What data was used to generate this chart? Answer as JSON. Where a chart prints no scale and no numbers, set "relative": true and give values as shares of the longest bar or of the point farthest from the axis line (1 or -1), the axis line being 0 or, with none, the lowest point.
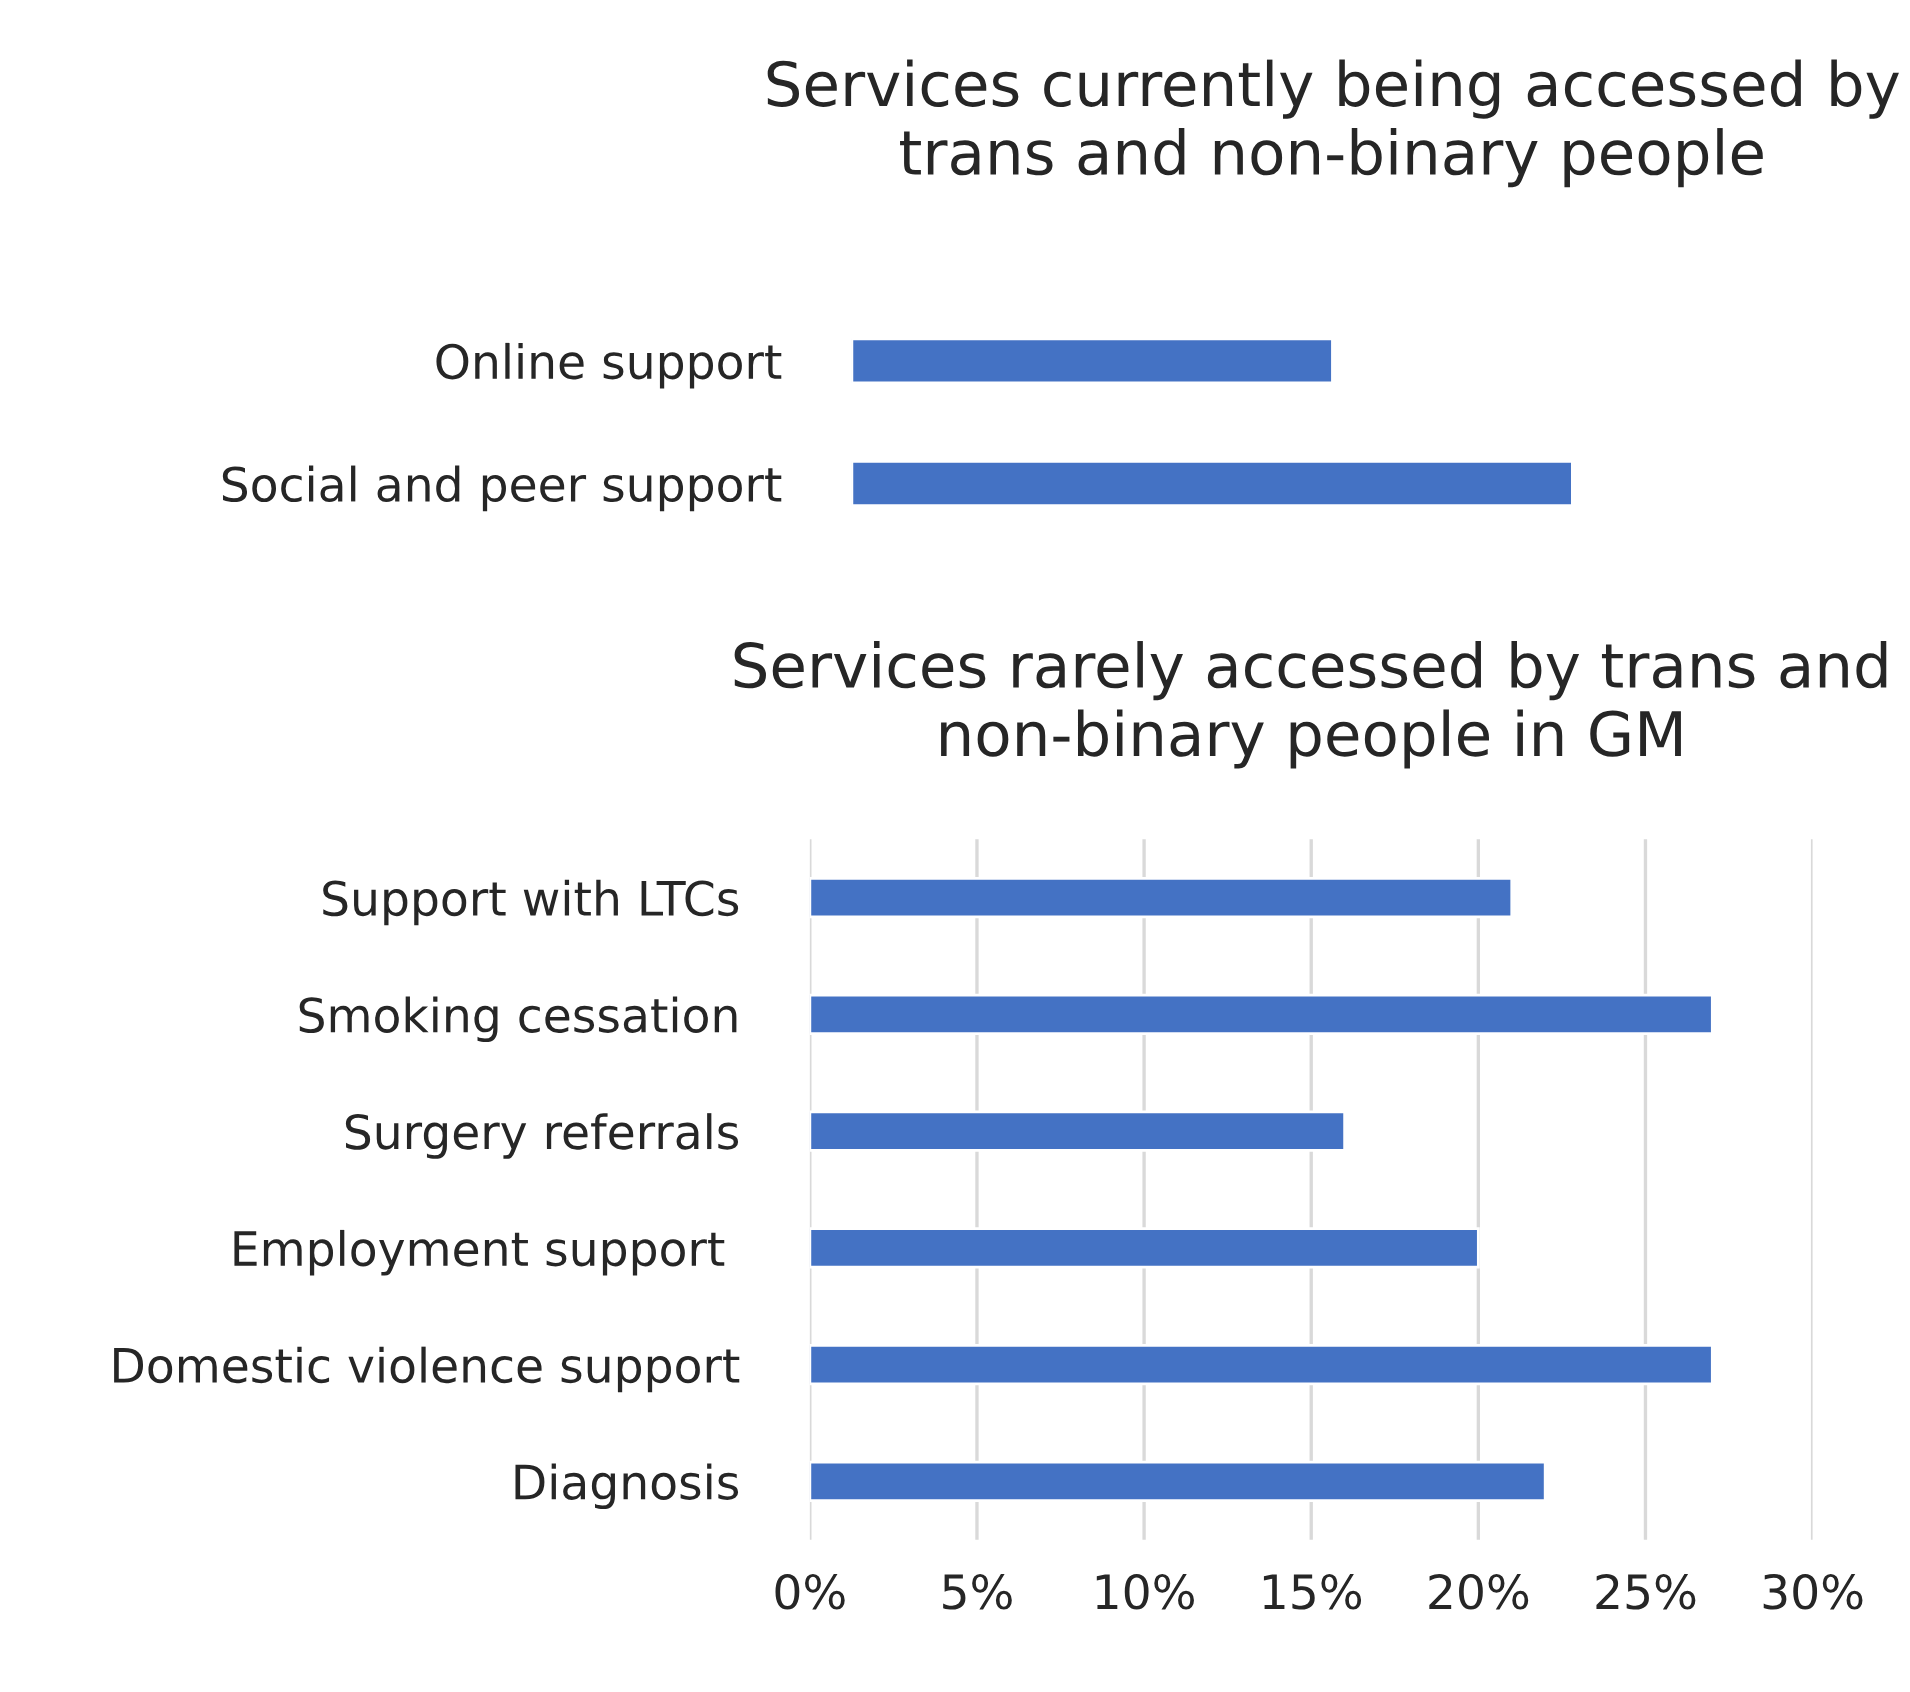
{
  "chart_data": [
    {
      "type": "bar",
      "orientation": "horizontal",
      "relative": true,
      "title": "Services currently being accessed by\ntrans and non-binary people",
      "categories": [
        "Online support",
        "Social and peer support"
      ],
      "values": [
        0.667,
        1
      ],
      "color": "#4472c4",
      "tick_labels": "y"
    },
    {
      "type": "bar",
      "orientation": "horizontal",
      "title": "Services rarely accessed by trans and\nnon-binary people in GM",
      "categories": [
        "Support with LTCs",
        "Smoking cessation",
        "Surgery referrals",
        "Employment support ",
        "Domestic violence support",
        "Diagnosis"
      ],
      "values": [
        21,
        27,
        16,
        20,
        27,
        22
      ],
      "color": "#4472c4",
      "xlim": [
        0,
        30
      ],
      "xticks": [
        {
          "value": 0,
          "label": "0%"
        },
        {
          "value": 5,
          "label": "5%"
        },
        {
          "value": 10,
          "label": "10%"
        },
        {
          "value": 15,
          "label": "15%"
        },
        {
          "value": 20,
          "label": "20%"
        },
        {
          "value": 25,
          "label": "25%"
        },
        {
          "value": 30,
          "label": "30%"
        }
      ],
      "grid": "x"
    }
  ]
}
